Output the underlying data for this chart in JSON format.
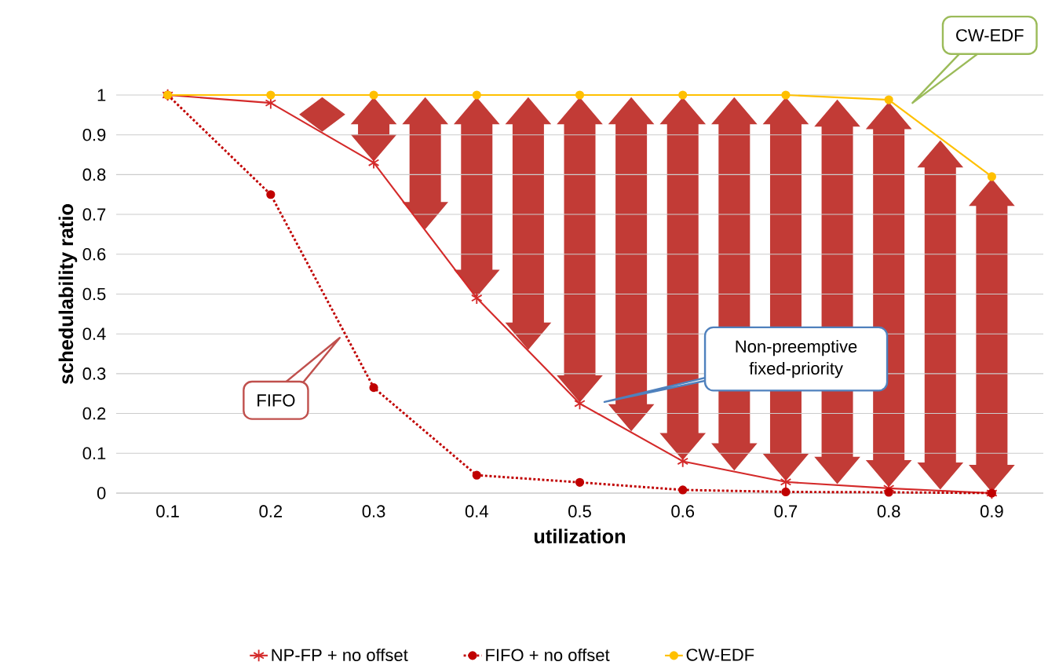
{
  "chart_data": {
    "type": "line",
    "xlabel": "utilization",
    "ylabel": "schedulability ratio",
    "categories": [
      "0.1",
      "0.2",
      "0.3",
      "0.4",
      "0.5",
      "0.6",
      "0.7",
      "0.8",
      "0.9"
    ],
    "series": [
      {
        "name": "NP-FP + no offset",
        "color": "#d42a2a",
        "marker": "cross",
        "line_style": "solid",
        "values": [
          1,
          0.98,
          0.83,
          0.49,
          0.225,
          0.08,
          0.028,
          0.012,
          0
        ]
      },
      {
        "name": "FIFO + no offset",
        "color": "#c00000",
        "marker": "circle",
        "line_style": "dotted",
        "values": [
          1,
          0.75,
          0.265,
          0.045,
          0.027,
          0.008,
          0.003,
          0.002,
          0
        ]
      },
      {
        "name": "CW-EDF",
        "color": "#ffc000",
        "marker": "circle",
        "line_style": "solid",
        "values": [
          1,
          1,
          1,
          1,
          1,
          1,
          1,
          0.988,
          0.795
        ]
      }
    ],
    "ylim": [
      0,
      1
    ],
    "yticks": [
      0,
      0.1,
      0.2,
      0.3,
      0.4,
      0.5,
      0.6,
      0.7,
      0.8,
      0.9,
      1
    ],
    "grid": "y",
    "legend": "bottom",
    "annotations": [
      "FIFO",
      "Non-preemptive fixed-priority",
      "CW-EDF"
    ]
  }
}
